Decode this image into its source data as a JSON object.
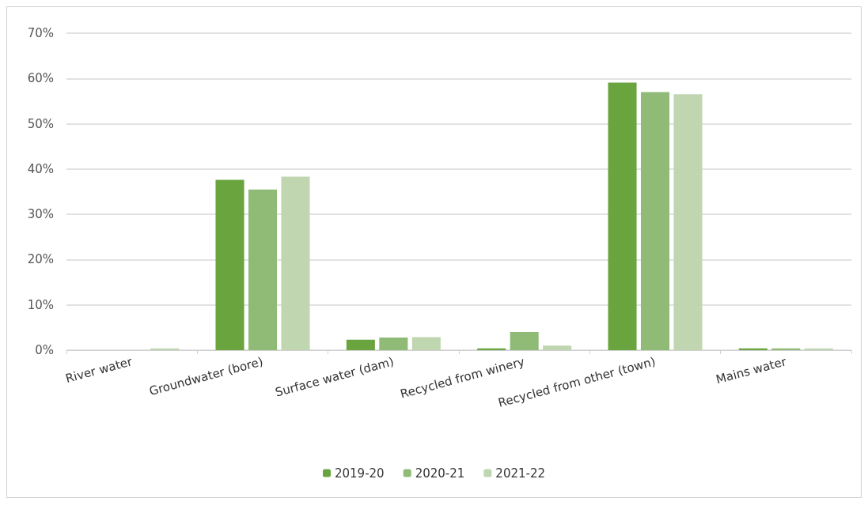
{
  "chart_data": {
    "type": "bar",
    "categories": [
      "River water",
      "Groundwater (bore)",
      "Surface water (dam)",
      "Recycled from winery",
      "Recycled from other (town)",
      "Mains water"
    ],
    "series": [
      {
        "name": "2019-20",
        "color": "#6aa43f",
        "values": [
          0,
          37.6,
          2.3,
          0.4,
          59.1,
          0.4
        ]
      },
      {
        "name": "2020-21",
        "color": "#90bb77",
        "values": [
          0,
          35.5,
          2.8,
          4.0,
          57.0,
          0.4
        ]
      },
      {
        "name": "2021-22",
        "color": "#bfd6b0",
        "values": [
          0.4,
          38.3,
          2.9,
          1.0,
          56.5,
          0.4
        ]
      }
    ],
    "ylim": [
      0,
      70
    ],
    "yticks": [
      {
        "value": 0,
        "label": "0%"
      },
      {
        "value": 10,
        "label": "10%"
      },
      {
        "value": 20,
        "label": "20%"
      },
      {
        "value": 30,
        "label": "30%"
      },
      {
        "value": 40,
        "label": "40%"
      },
      {
        "value": 50,
        "label": "50%"
      },
      {
        "value": 60,
        "label": "60%"
      },
      {
        "value": 70,
        "label": "70%"
      }
    ],
    "grid": "y",
    "legend": "bottom"
  }
}
